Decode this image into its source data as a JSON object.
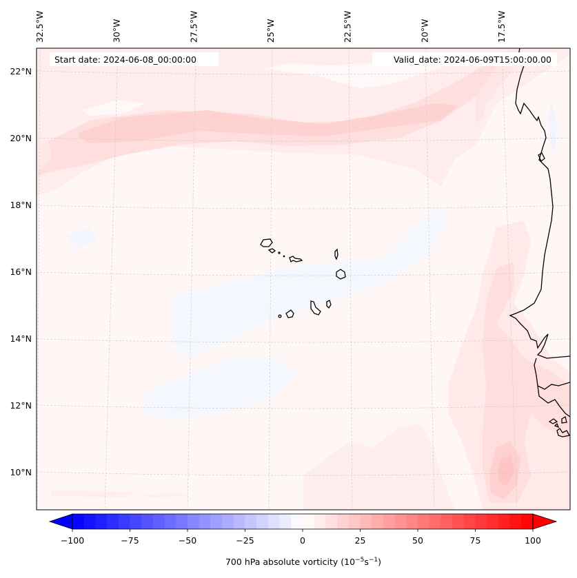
{
  "map": {
    "title_left": "Start date: 2024-06-08_00:00:00",
    "title_right": "Valid_date: 2024-06-09T15:00:00.00",
    "projection": "conic (curved parallels)",
    "extent": {
      "lon_min": -33.0,
      "lon_max": -15.6,
      "lat_min": 8.9,
      "lat_max": 22.8
    },
    "lon_ticks": [
      {
        "value": -32.5,
        "label": "32.5°W"
      },
      {
        "value": -30.0,
        "label": "30°W"
      },
      {
        "value": -27.5,
        "label": "27.5°W"
      },
      {
        "value": -25.0,
        "label": "25°W"
      },
      {
        "value": -22.5,
        "label": "22.5°W"
      },
      {
        "value": -20.0,
        "label": "20°W"
      },
      {
        "value": -17.5,
        "label": "17.5°W"
      }
    ],
    "lat_ticks": [
      {
        "value": 22,
        "label": "22°N"
      },
      {
        "value": 20,
        "label": "20°N"
      },
      {
        "value": 18,
        "label": "18°N"
      },
      {
        "value": 16,
        "label": "16°N"
      },
      {
        "value": 14,
        "label": "14°N"
      },
      {
        "value": 12,
        "label": "12°N"
      },
      {
        "value": 10,
        "label": "10°N"
      }
    ],
    "features": [
      {
        "name": "cape-verde-islands",
        "description": "island outlines near 15-17°N, 22.5-25.5°W"
      },
      {
        "name": "west-africa-coastline",
        "description": "Mauritania, Senegal, Gambia, Guinea-Bissau coastline"
      }
    ],
    "vorticity_features": [
      {
        "name": "zonal-positive-band",
        "lat_approx": 20.5,
        "lon_range": [
          -33,
          -17
        ],
        "value_approx": 15
      },
      {
        "name": "coastal-positive-streak",
        "lat_range": [
          11,
          17
        ],
        "lon_approx": -18,
        "value_approx": 15
      },
      {
        "name": "southern-maximum",
        "lat_approx": 10.0,
        "lon_approx": -17.5,
        "value_approx": 30
      },
      {
        "name": "weak-negative-patches",
        "lat_range": [
          12,
          18
        ],
        "lon_range": [
          -31,
          -20
        ],
        "value_approx": -5
      }
    ]
  },
  "colorbar": {
    "label_main": "700 hPa absolute vorticity (10",
    "label_exp1": "−5",
    "label_mid": "s",
    "label_exp2": "−1",
    "label_end": ")",
    "vmin": -100,
    "vmax": 100,
    "step": 5,
    "extend": "both",
    "colormap": "bwr",
    "low_color": "#0000ff",
    "mid_color": "#ffffff",
    "high_color": "#ff0000",
    "ticks": [
      {
        "value": -100,
        "label": "−100"
      },
      {
        "value": -75,
        "label": "−75"
      },
      {
        "value": -50,
        "label": "−50"
      },
      {
        "value": -25,
        "label": "−25"
      },
      {
        "value": 0,
        "label": "0"
      },
      {
        "value": 25,
        "label": "25"
      },
      {
        "value": 50,
        "label": "50"
      },
      {
        "value": 75,
        "label": "75"
      },
      {
        "value": 100,
        "label": "100"
      }
    ]
  }
}
